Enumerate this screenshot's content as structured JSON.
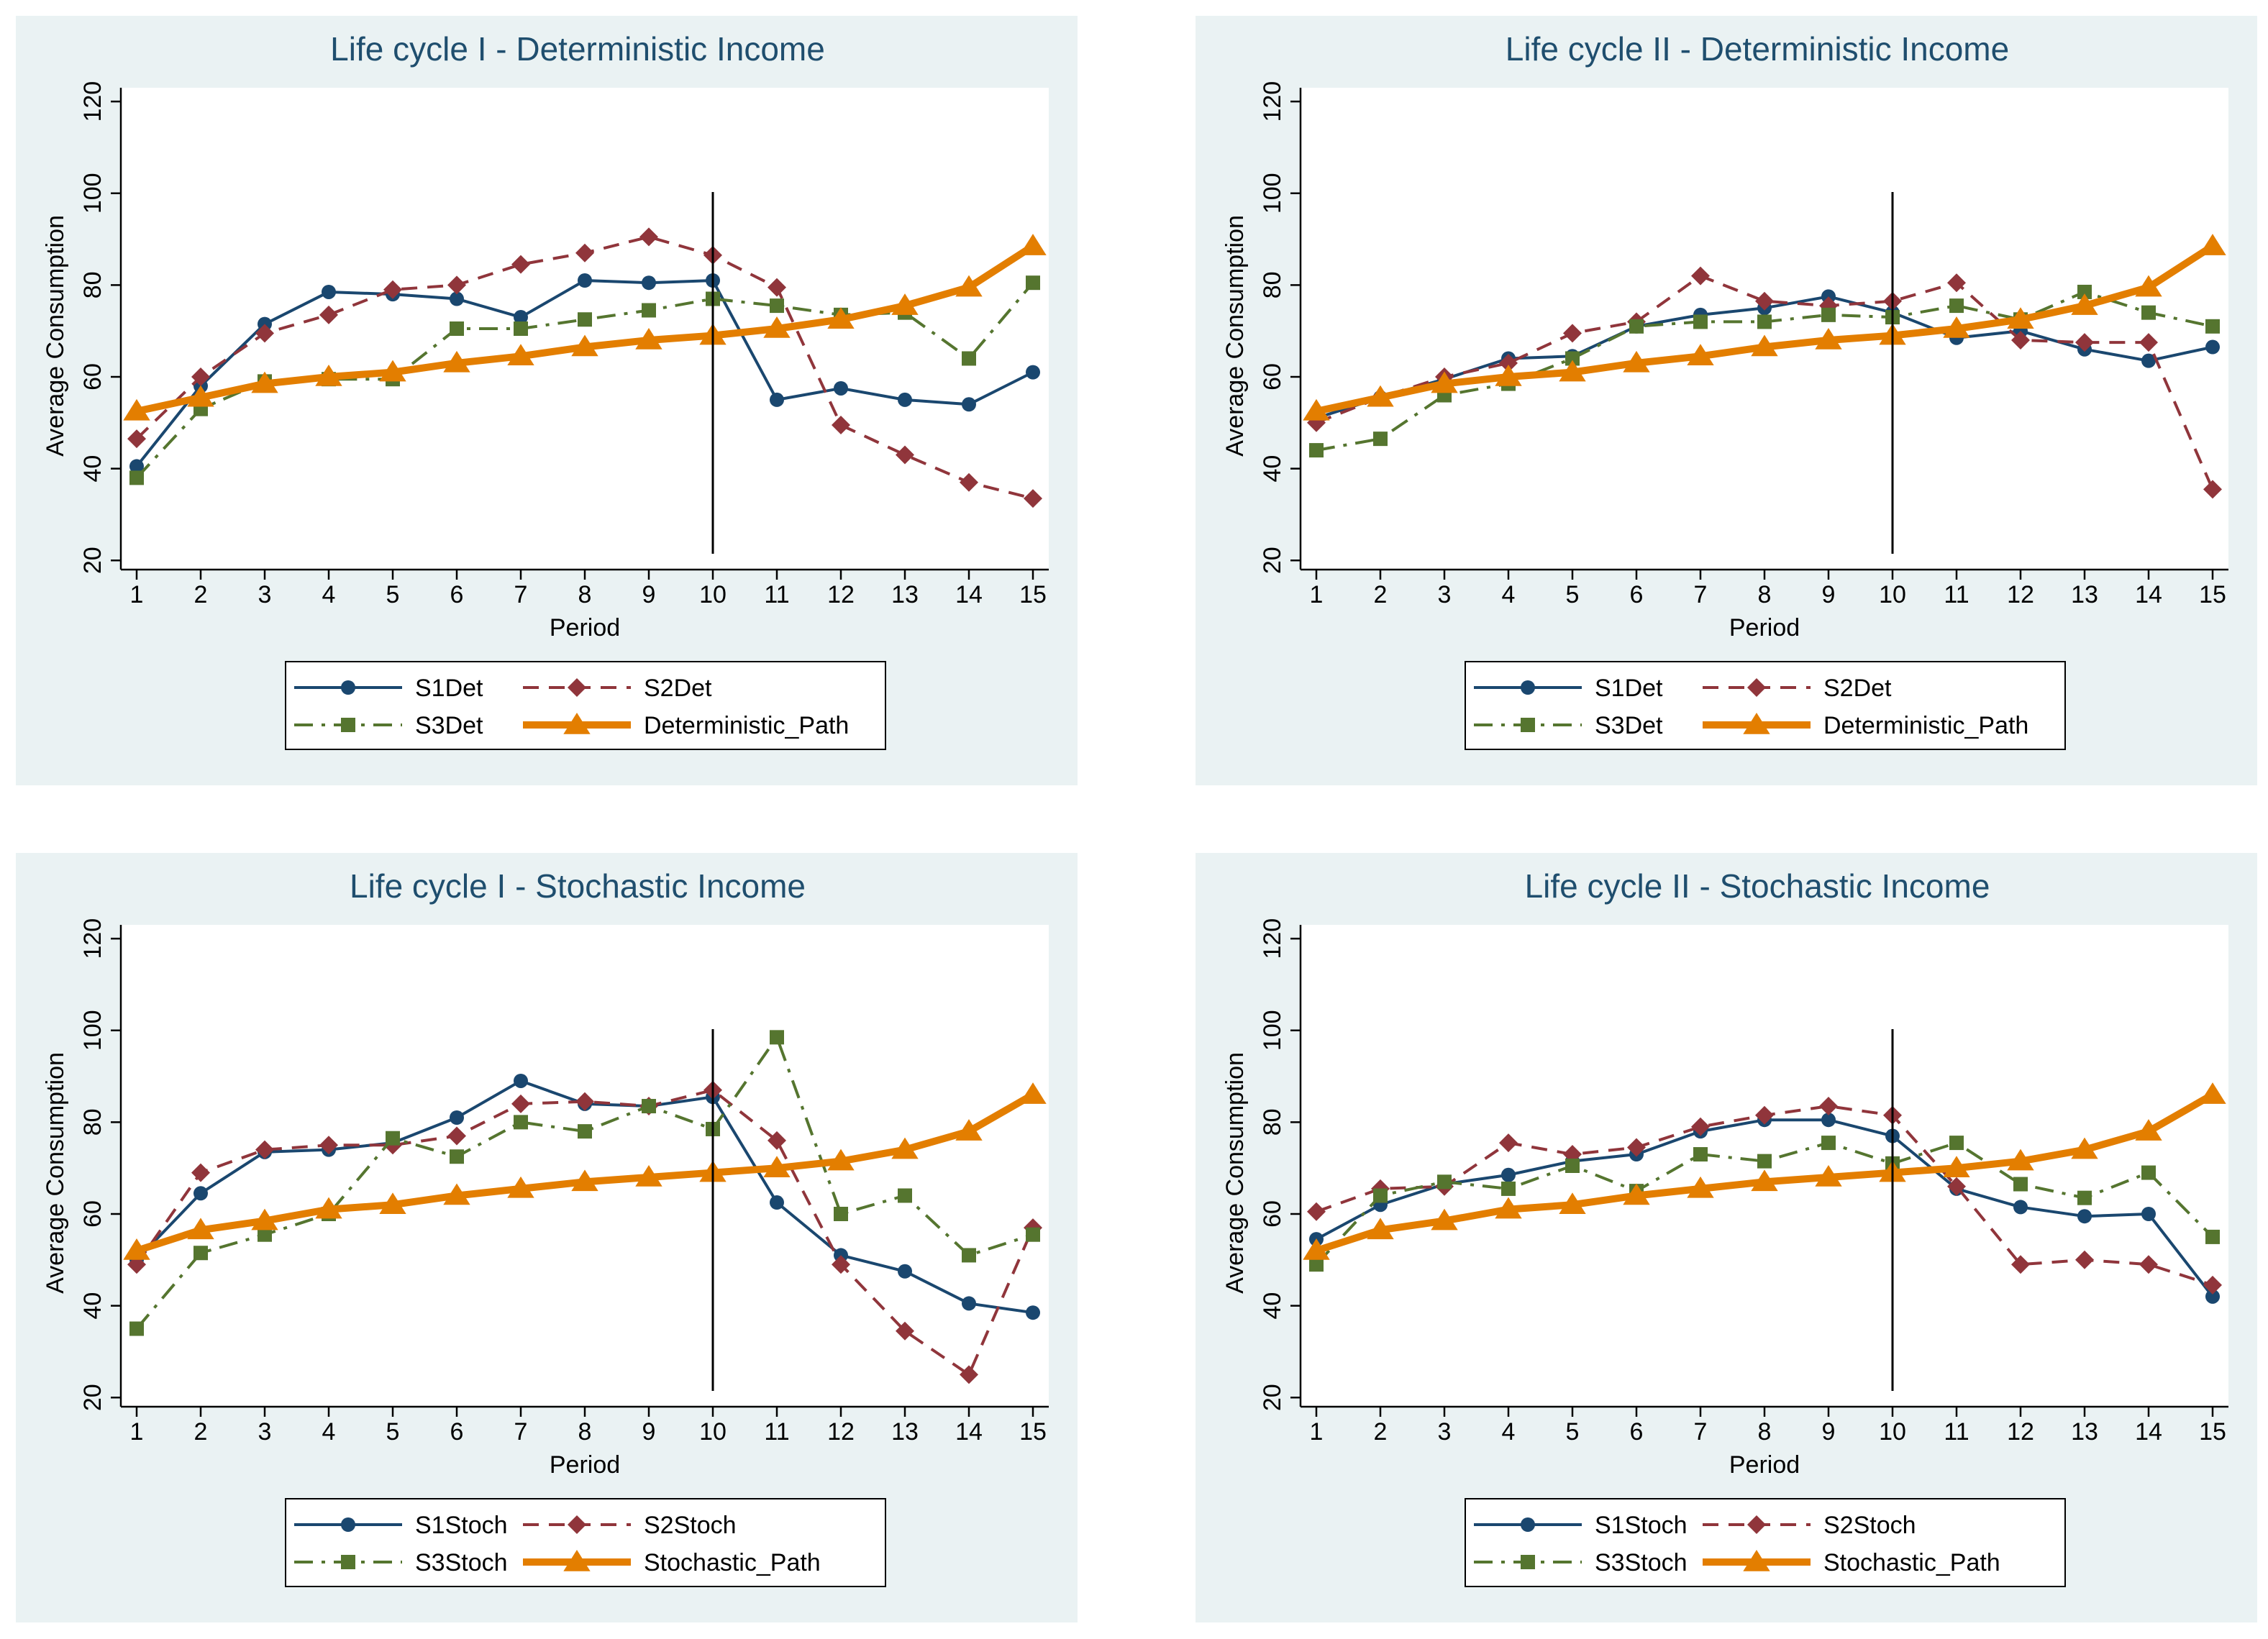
{
  "chart_data": [
    {
      "type": "line",
      "title": "Life cycle I - Deterministic Income",
      "xlabel": "Period",
      "ylabel": "Average Consumption",
      "x": [
        1,
        2,
        3,
        4,
        5,
        6,
        7,
        8,
        9,
        10,
        11,
        12,
        13,
        14,
        15
      ],
      "yticks": [
        20,
        40,
        60,
        80,
        100,
        120
      ],
      "ylim": [
        18,
        123
      ],
      "vline": 10,
      "series": [
        {
          "name": "S1Det",
          "style": "s1",
          "values": [
            40.5,
            58,
            71.5,
            78.5,
            78,
            77,
            73,
            81,
            80.5,
            81,
            55,
            57.5,
            55,
            54,
            61
          ]
        },
        {
          "name": "S2Det",
          "style": "s2",
          "values": [
            46.5,
            60,
            69.5,
            73.5,
            79,
            80,
            84.5,
            87,
            90.5,
            86.5,
            79.5,
            49.5,
            43,
            37,
            33.5
          ]
        },
        {
          "name": "S3Det",
          "style": "s3",
          "values": [
            38,
            53,
            59,
            59.5,
            59.5,
            70.5,
            70.5,
            72.5,
            74.5,
            77,
            75.5,
            73.5,
            74,
            64,
            80.5
          ]
        },
        {
          "name": "Deterministic_Path",
          "style": "path",
          "values": [
            52.5,
            55.5,
            58.5,
            60,
            61,
            63,
            64.5,
            66.5,
            68,
            69,
            70.5,
            72.5,
            75.5,
            79.5,
            88.5
          ]
        }
      ]
    },
    {
      "type": "line",
      "title": "Life cycle II - Deterministic Income",
      "xlabel": "Period",
      "ylabel": "Average Consumption",
      "x": [
        1,
        2,
        3,
        4,
        5,
        6,
        7,
        8,
        9,
        10,
        11,
        12,
        13,
        14,
        15
      ],
      "yticks": [
        20,
        40,
        60,
        80,
        100,
        120
      ],
      "ylim": [
        18,
        123
      ],
      "vline": 10,
      "series": [
        {
          "name": "S1Det",
          "style": "s1",
          "values": [
            51,
            55.5,
            59.5,
            64,
            64.5,
            71,
            73.5,
            75,
            77.5,
            74,
            68.5,
            70,
            66,
            63.5,
            66.5
          ]
        },
        {
          "name": "S2Det",
          "style": "s2",
          "values": [
            50,
            55.5,
            60,
            63,
            69.5,
            72,
            82,
            76.5,
            75.5,
            76.5,
            80.5,
            68,
            67.5,
            67.5,
            35.5
          ]
        },
        {
          "name": "S3Det",
          "style": "s3",
          "values": [
            44,
            46.5,
            56,
            58.5,
            64,
            71,
            72,
            72,
            73.5,
            73,
            75.5,
            72.5,
            78.5,
            74,
            71
          ]
        },
        {
          "name": "Deterministic_Path",
          "style": "path",
          "values": [
            52.5,
            55.5,
            58.5,
            60,
            61,
            63,
            64.5,
            66.5,
            68,
            69,
            70.5,
            72.5,
            75.5,
            79.5,
            88.5
          ]
        }
      ]
    },
    {
      "type": "line",
      "title": "Life cycle I - Stochastic Income",
      "xlabel": "Period",
      "ylabel": "Average Consumption",
      "x": [
        1,
        2,
        3,
        4,
        5,
        6,
        7,
        8,
        9,
        10,
        11,
        12,
        13,
        14,
        15
      ],
      "yticks": [
        20,
        40,
        60,
        80,
        100,
        120
      ],
      "ylim": [
        18,
        123
      ],
      "vline": 10,
      "series": [
        {
          "name": "S1Stoch",
          "style": "s1",
          "values": [
            50,
            64.5,
            73.5,
            74,
            75.5,
            81,
            89,
            84,
            83.5,
            85.5,
            62.5,
            51,
            47.5,
            40.5,
            38.5
          ]
        },
        {
          "name": "S2Stoch",
          "style": "s2",
          "values": [
            49,
            69,
            74,
            75,
            75,
            77,
            84,
            84.5,
            83.5,
            87,
            76,
            49,
            34.5,
            25,
            57
          ]
        },
        {
          "name": "S3Stoch",
          "style": "s3",
          "values": [
            35,
            51.5,
            55.5,
            60,
            76.5,
            72.5,
            80,
            78,
            83.5,
            78.5,
            98.5,
            60,
            64,
            51,
            55.5
          ]
        },
        {
          "name": "Stochastic_Path",
          "style": "path",
          "values": [
            52,
            56.5,
            58.5,
            61,
            62,
            64,
            65.5,
            67,
            68,
            69,
            70,
            71.5,
            74,
            78,
            86
          ]
        }
      ]
    },
    {
      "type": "line",
      "title": "Life cycle II - Stochastic Income",
      "xlabel": "Period",
      "ylabel": "Average Consumption",
      "x": [
        1,
        2,
        3,
        4,
        5,
        6,
        7,
        8,
        9,
        10,
        11,
        12,
        13,
        14,
        15
      ],
      "yticks": [
        20,
        40,
        60,
        80,
        100,
        120
      ],
      "ylim": [
        18,
        123
      ],
      "vline": 10,
      "series": [
        {
          "name": "S1Stoch",
          "style": "s1",
          "values": [
            54.5,
            62,
            66.5,
            68.5,
            71.5,
            73,
            78,
            80.5,
            80.5,
            77,
            65.5,
            61.5,
            59.5,
            60,
            42
          ]
        },
        {
          "name": "S2Stoch",
          "style": "s2",
          "values": [
            60.5,
            65.5,
            66,
            75.5,
            73,
            74.5,
            79,
            81.5,
            83.5,
            81.5,
            66,
            49,
            50,
            49,
            44.5
          ]
        },
        {
          "name": "S3Stoch",
          "style": "s3",
          "values": [
            49,
            64,
            67,
            65.5,
            70.5,
            65,
            73,
            71.5,
            75.5,
            71,
            75.5,
            66.5,
            63.5,
            69,
            55
          ]
        },
        {
          "name": "Stochastic_Path",
          "style": "path",
          "values": [
            52,
            56.5,
            58.5,
            61,
            62,
            64,
            65.5,
            67,
            68,
            69,
            70,
            71.5,
            74,
            78,
            86
          ]
        }
      ]
    }
  ],
  "colors": {
    "background": "#ffffff",
    "panel": "#eaf2f3",
    "plot": "#ffffff",
    "title": "#1f4e6e",
    "s1": "#1a476f",
    "s2": "#90353b",
    "s3": "#55752f",
    "path": "#e37e00",
    "axis": "#000000"
  }
}
